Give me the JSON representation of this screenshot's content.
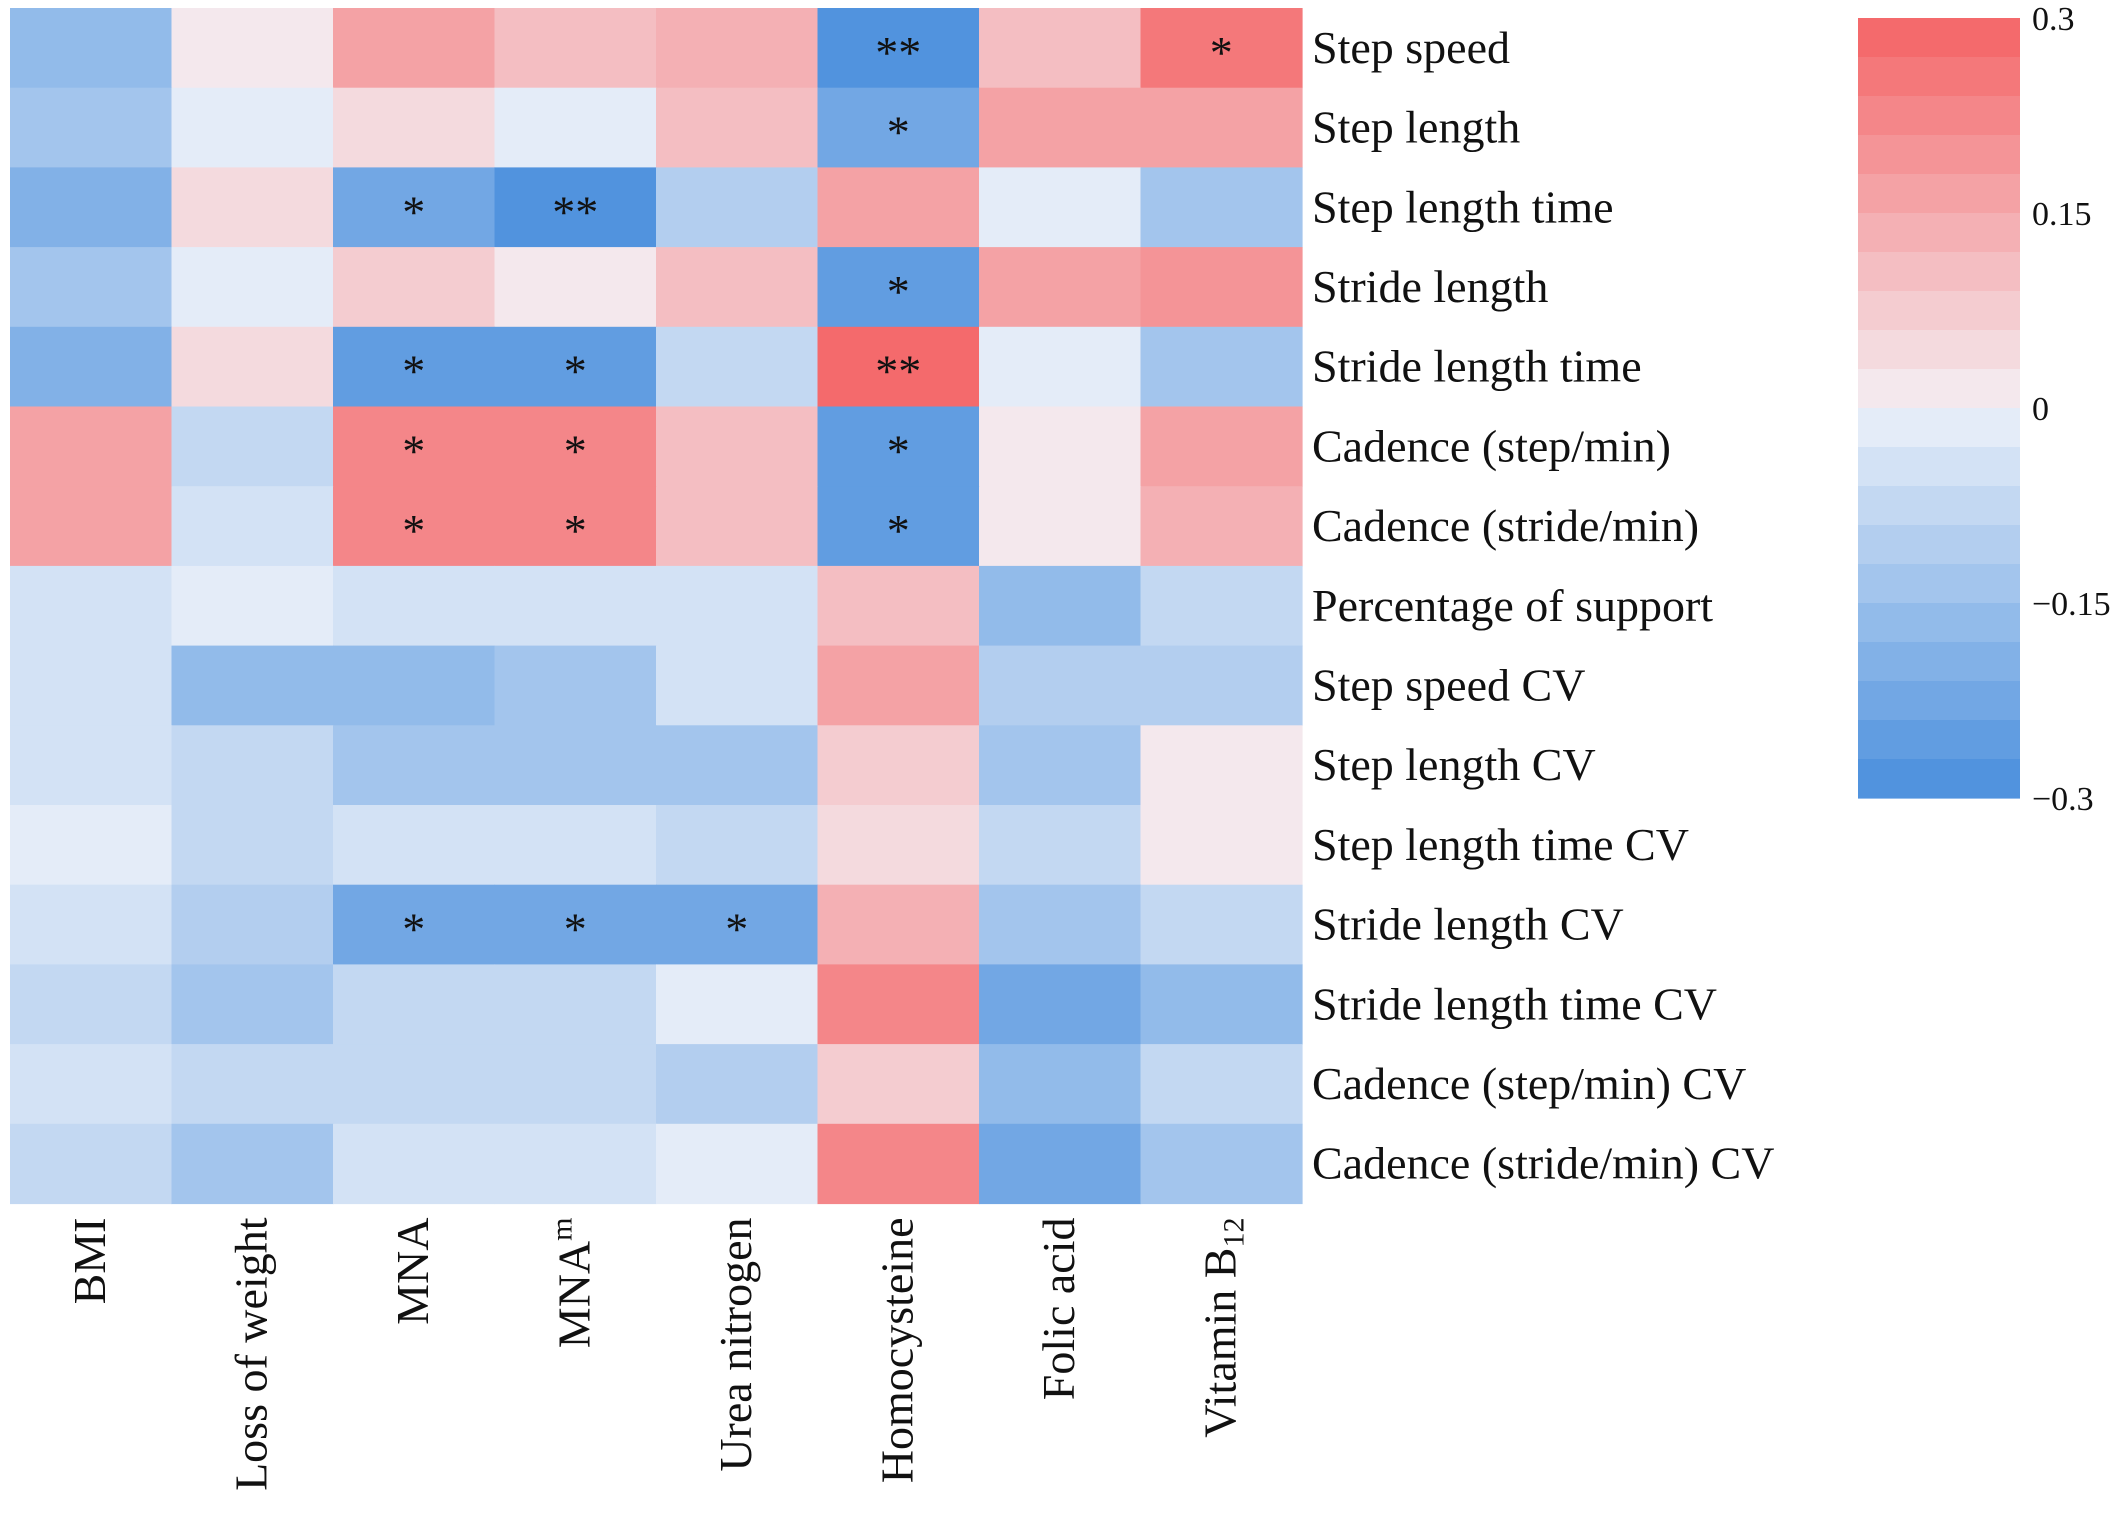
{
  "chart_data": {
    "type": "heatmap",
    "title": "",
    "xlabel": "",
    "ylabel": "",
    "columns": [
      {
        "label": "BMI",
        "sub": ""
      },
      {
        "label": "Loss of weight",
        "sub": ""
      },
      {
        "label": "MNA",
        "sub": ""
      },
      {
        "label": "MNA",
        "sup": "m"
      },
      {
        "label": "Urea nitrogen",
        "sub": ""
      },
      {
        "label": "Homocysteine",
        "sub": ""
      },
      {
        "label": "Folic acid",
        "sub": ""
      },
      {
        "label": "Vitamin B",
        "sub": "12"
      }
    ],
    "rows": [
      "Step speed",
      "Step length",
      "Step length time",
      "Stride length",
      "Stride length time",
      "Cadence (step/min)",
      "Cadence (stride/min)",
      "Percentage of support",
      "Step speed CV",
      "Step length CV",
      "Step length time CV",
      "Stride length CV",
      "Stride length time CV",
      "Cadence (step/min) CV",
      "Cadence (stride/min) CV"
    ],
    "values": [
      [
        -0.18,
        0.01,
        0.16,
        0.12,
        0.14,
        -0.28,
        0.1,
        0.26
      ],
      [
        -0.13,
        -0.02,
        0.05,
        -0.02,
        0.12,
        -0.24,
        0.16,
        0.17
      ],
      [
        -0.2,
        0.06,
        -0.24,
        -0.28,
        -0.1,
        0.18,
        -0.02,
        -0.13
      ],
      [
        -0.14,
        -0.02,
        0.08,
        0.01,
        0.12,
        -0.26,
        0.17,
        0.19
      ],
      [
        -0.2,
        0.06,
        -0.25,
        -0.25,
        -0.07,
        0.3,
        -0.02,
        -0.14
      ],
      [
        0.17,
        -0.08,
        0.22,
        0.22,
        0.11,
        -0.25,
        0.02,
        0.16
      ],
      [
        0.17,
        -0.06,
        0.22,
        0.22,
        0.11,
        -0.26,
        0.02,
        0.14
      ],
      [
        -0.06,
        -0.03,
        -0.06,
        -0.06,
        -0.06,
        0.1,
        -0.18,
        -0.08
      ],
      [
        -0.06,
        -0.17,
        -0.16,
        -0.15,
        -0.06,
        0.16,
        -0.1,
        -0.1
      ],
      [
        -0.06,
        -0.09,
        -0.13,
        -0.13,
        -0.14,
        0.08,
        -0.14,
        0.02
      ],
      [
        -0.03,
        -0.09,
        -0.06,
        -0.06,
        -0.09,
        0.06,
        -0.08,
        0.02
      ],
      [
        -0.06,
        -0.12,
        -0.24,
        -0.24,
        -0.24,
        0.14,
        -0.14,
        -0.07
      ],
      [
        -0.09,
        -0.15,
        -0.08,
        -0.08,
        -0.02,
        0.22,
        -0.23,
        -0.18
      ],
      [
        -0.06,
        -0.08,
        -0.08,
        -0.08,
        -0.11,
        0.07,
        -0.16,
        -0.07
      ],
      [
        -0.09,
        -0.15,
        -0.06,
        -0.04,
        -0.02,
        0.22,
        -0.24,
        -0.15
      ]
    ],
    "annotations": [
      [
        "",
        "",
        "",
        "",
        "",
        "**",
        "",
        "*"
      ],
      [
        "",
        "",
        "",
        "",
        "",
        "*",
        "",
        ""
      ],
      [
        "",
        "",
        "*",
        "**",
        "",
        "",
        "",
        ""
      ],
      [
        "",
        "",
        "",
        "",
        "",
        "*",
        "",
        ""
      ],
      [
        "",
        "",
        "*",
        "*",
        "",
        "**",
        "",
        ""
      ],
      [
        "",
        "",
        "*",
        "*",
        "",
        "*",
        "",
        ""
      ],
      [
        "",
        "",
        "*",
        "*",
        "",
        "*",
        "",
        ""
      ],
      [
        "",
        "",
        "",
        "",
        "",
        "",
        "",
        ""
      ],
      [
        "",
        "",
        "",
        "",
        "",
        "",
        "",
        ""
      ],
      [
        "",
        "",
        "",
        "",
        "",
        "",
        "",
        ""
      ],
      [
        "",
        "",
        "",
        "",
        "",
        "",
        "",
        ""
      ],
      [
        "",
        "",
        "*",
        "*",
        "*",
        "",
        "",
        ""
      ],
      [
        "",
        "",
        "",
        "",
        "",
        "",
        "",
        ""
      ],
      [
        "",
        "",
        "",
        "",
        "",
        "",
        "",
        ""
      ],
      [
        "",
        "",
        "",
        "",
        "",
        "",
        "",
        ""
      ]
    ],
    "colorbar": {
      "min": -0.3,
      "max": 0.3,
      "steps": 20,
      "ticks": [
        0.3,
        0.15,
        0,
        -0.15,
        -0.3
      ],
      "tick_labels": [
        "0.3",
        "0.15",
        "0",
        "−0.15",
        "−0.3"
      ],
      "positive_color": "#f46a6c",
      "neutral_color": "#f4f6fb",
      "negative_color": "#5193de"
    },
    "legend_position": "top-right",
    "grid": false
  }
}
